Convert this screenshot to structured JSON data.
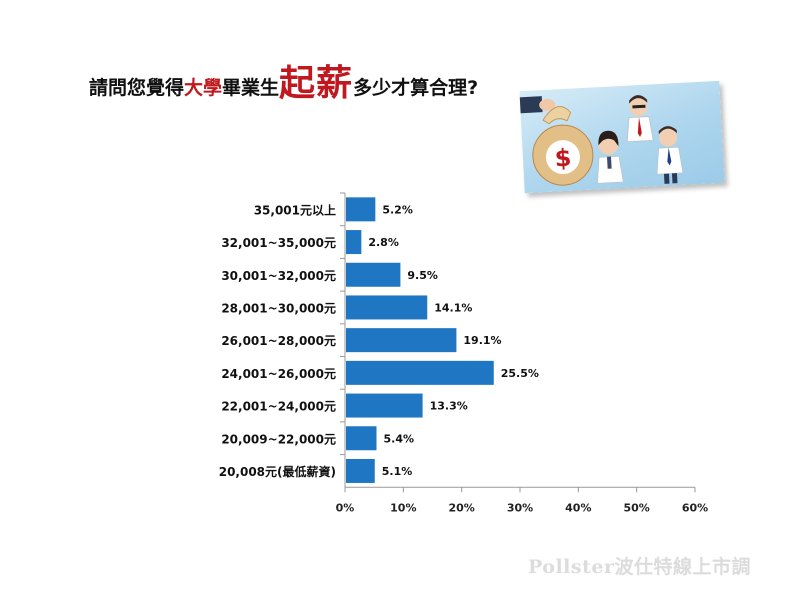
{
  "title": {
    "part1": "請問您覺得",
    "part2": "大學",
    "part3": "畢業生",
    "part4": "起薪",
    "part5": "多少才算合理?"
  },
  "illustration": {
    "symbol": "$",
    "icons": [
      "money-bag-icon",
      "businessman-icon",
      "businesswoman-icon",
      "office-worker-icon"
    ]
  },
  "chart_data": {
    "type": "bar",
    "orientation": "horizontal",
    "categories": [
      "35,001元以上",
      "32,001~35,000元",
      "30,001~32,000元",
      "28,001~30,000元",
      "26,001~28,000元",
      "24,001~26,000元",
      "22,001~24,000元",
      "20,009~22,000元",
      "20,008元(最低薪資)"
    ],
    "values": [
      5.2,
      2.8,
      9.5,
      14.1,
      19.1,
      25.5,
      13.3,
      5.4,
      5.1
    ],
    "value_labels": [
      "5.2%",
      "2.8%",
      "9.5%",
      "14.1%",
      "19.1%",
      "25.5%",
      "13.3%",
      "5.4%",
      "5.1%"
    ],
    "xlim": [
      0,
      60
    ],
    "x_ticks": [
      "0%",
      "10%",
      "20%",
      "30%",
      "40%",
      "50%",
      "60%"
    ],
    "bar_color": "#1f77c4",
    "grid": false
  },
  "watermark": "Pollster波仕特線上市調"
}
